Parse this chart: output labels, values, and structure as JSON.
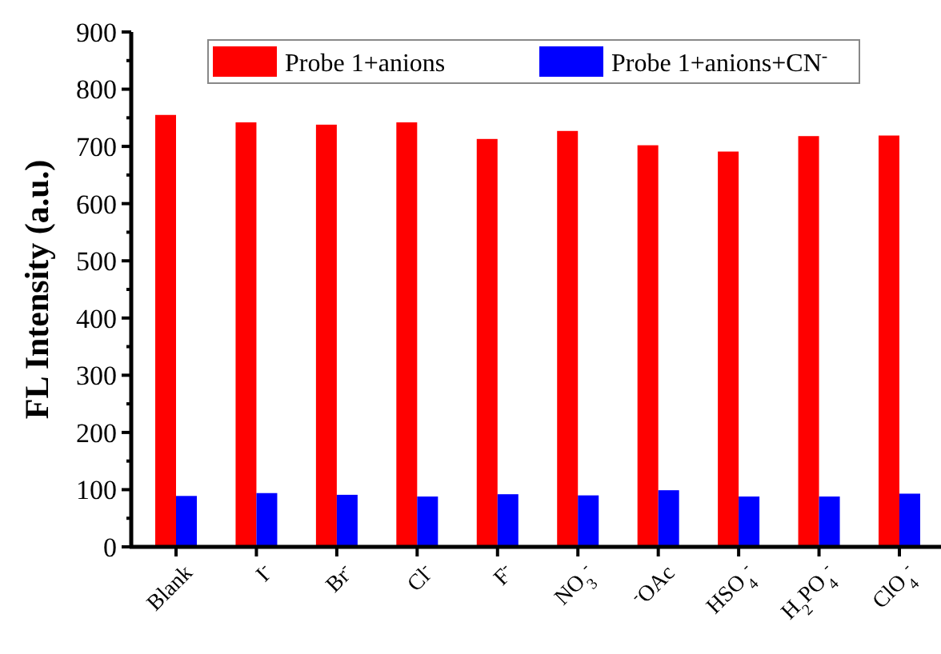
{
  "chart_data": {
    "type": "bar",
    "ylabel": "FL Intensity (a.u.)",
    "categories": [
      "Blank",
      "I$^{-}$",
      "Br$^{-}$",
      "Cl$^{-}$",
      "F$^{-}$",
      "NO$_{3}$$^{-}$",
      "$^{-}$OAc",
      "HSO$_{4}$$^{-}$",
      "H$_{2}$PO$_{4}$$^{-}$",
      "ClO$_{4}$$^{-}$"
    ],
    "series": [
      {
        "name": "Probe 1+anions",
        "color": "#ff0000",
        "values": [
          755,
          742,
          738,
          742,
          713,
          727,
          702,
          691,
          718,
          719
        ]
      },
      {
        "name": "Probe 1+anions+CN$^{-}$",
        "color": "#0000ff",
        "values": [
          89,
          94,
          91,
          88,
          92,
          90,
          99,
          88,
          88,
          93
        ]
      }
    ],
    "ylim": [
      0,
      900
    ],
    "yticks": [
      0,
      {
        "value": 50,
        "label": null
      },
      100,
      {
        "value": 150,
        "label": null
      },
      200,
      {
        "value": 250,
        "label": null
      },
      300,
      {
        "value": 350,
        "label": null
      },
      400,
      {
        "value": 450,
        "label": null
      },
      500,
      {
        "value": 550,
        "label": null
      },
      600,
      {
        "value": 650,
        "label": null
      },
      700,
      {
        "value": 750,
        "label": null
      },
      800,
      {
        "value": 850,
        "label": null
      },
      900
    ],
    "legend": "top",
    "grid": false
  }
}
